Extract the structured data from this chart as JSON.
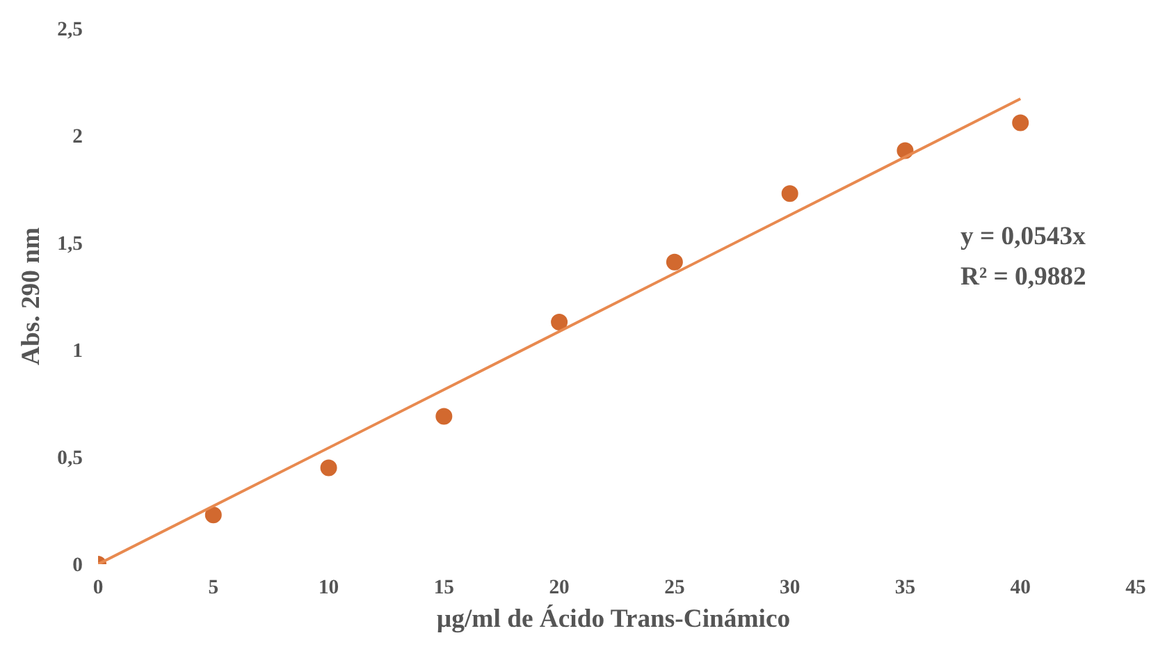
{
  "chart_data": {
    "type": "scatter",
    "xlabel": "µg/ml de  Ácido Trans-Cinámico",
    "ylabel": "Abs. 290 nm",
    "x": [
      0,
      5,
      10,
      15,
      20,
      25,
      30,
      35,
      40
    ],
    "series": [
      {
        "color": "#d2692f",
        "values": [
          0,
          0.23,
          0.45,
          0.69,
          1.13,
          1.41,
          1.73,
          1.93,
          2.06
        ],
        "marker": "circle"
      },
      {
        "type": "line",
        "color": "#e8894f",
        "x": [
          0,
          40
        ],
        "values": [
          0,
          2.172
        ],
        "marker": "none",
        "line_style": "solid"
      }
    ],
    "xlim": [
      0,
      45
    ],
    "ylim": [
      0,
      2.5
    ],
    "xticks": [
      0,
      5,
      10,
      15,
      20,
      25,
      30,
      35,
      40,
      45
    ],
    "yticks": [
      0,
      {
        "value": 0.5,
        "label": "0,5"
      },
      1,
      {
        "value": 1.5,
        "label": "1,5"
      },
      2,
      {
        "value": 2.5,
        "label": "2,5"
      }
    ],
    "annotations": [
      "y = 0,0543x",
      "R² = 0,9882"
    ],
    "grid": false
  }
}
